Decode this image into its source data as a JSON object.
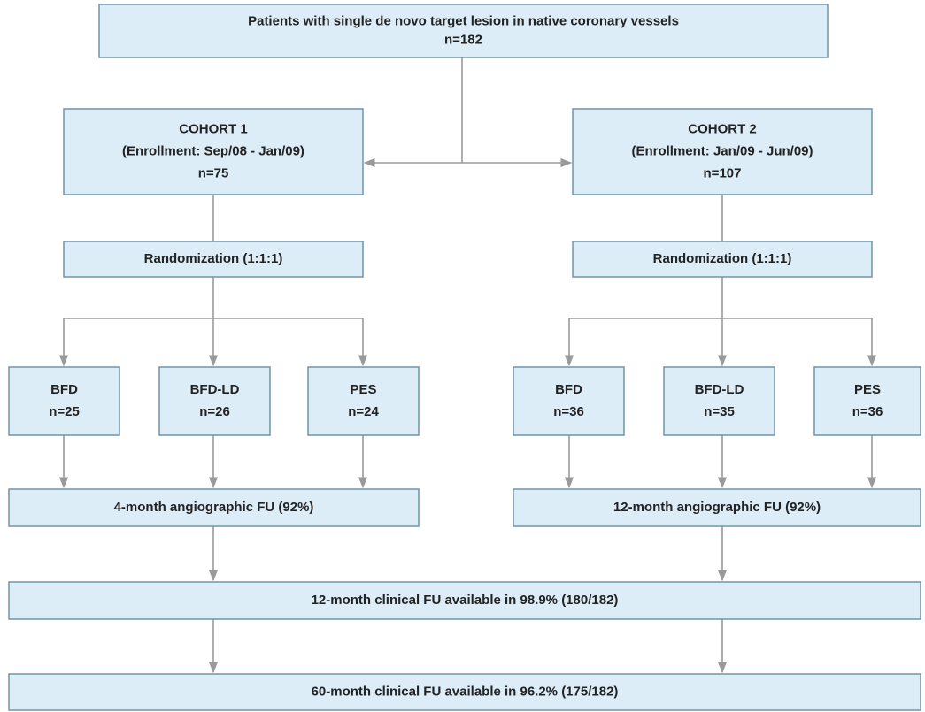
{
  "nodes": [
    {
      "lines": [
        "Patients with single de novo target lesion in native coronary vessels",
        "n=182"
      ]
    },
    {
      "lines": [
        "COHORT 1",
        "(Enrollment: Sep/08 - Jan/09)",
        "n=75"
      ]
    },
    {
      "lines": [
        "COHORT 2",
        "(Enrollment: Jan/09 - Jun/09)",
        "n=107"
      ]
    },
    {
      "lines": [
        "Randomization (1:1:1)"
      ]
    },
    {
      "lines": [
        "Randomization (1:1:1)"
      ]
    },
    {
      "lines": [
        "BFD",
        "n=25"
      ]
    },
    {
      "lines": [
        "BFD-LD",
        "n=26"
      ]
    },
    {
      "lines": [
        "PES",
        "n=24"
      ]
    },
    {
      "lines": [
        "BFD",
        "n=36"
      ]
    },
    {
      "lines": [
        "BFD-LD",
        "n=35"
      ]
    },
    {
      "lines": [
        "PES",
        "n=36"
      ]
    },
    {
      "lines": [
        "4-month angiographic FU (92%)"
      ]
    },
    {
      "lines": [
        "12-month angiographic FU (92%)"
      ]
    },
    {
      "lines": [
        "12-month clinical FU available in 98.9% (180/182)"
      ]
    },
    {
      "lines": [
        "60-month clinical FU available in 96.2% (175/182)"
      ]
    }
  ]
}
